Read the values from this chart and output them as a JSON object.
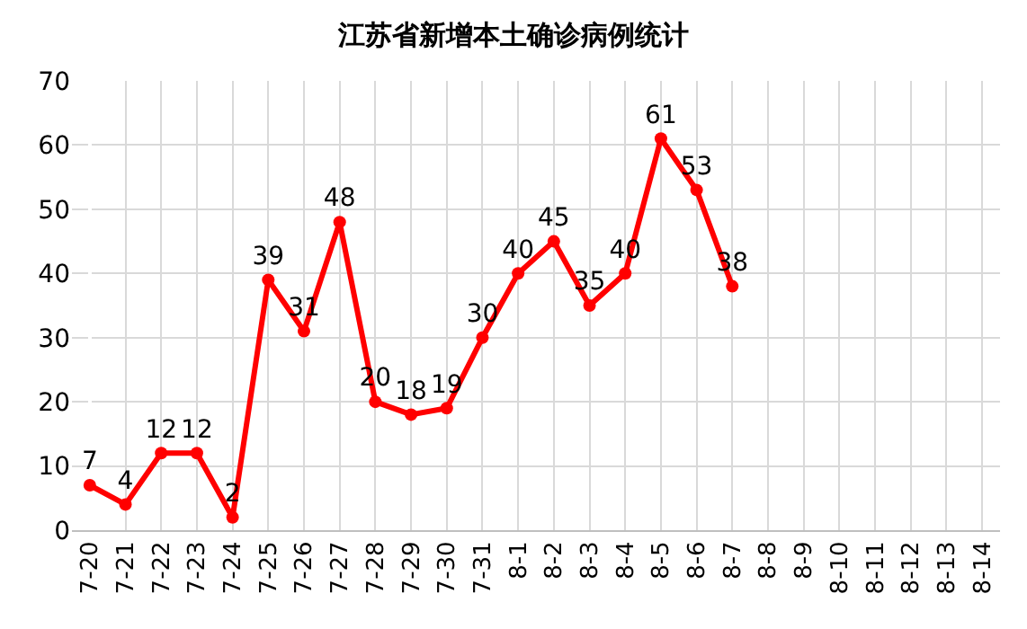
{
  "chart_data": {
    "type": "line",
    "title": "江苏省新增本土确诊病例统计",
    "categories": [
      "7-20",
      "7-21",
      "7-22",
      "7-23",
      "7-24",
      "7-25",
      "7-26",
      "7-27",
      "7-28",
      "7-29",
      "7-30",
      "7-31",
      "8-1",
      "8-2",
      "8-3",
      "8-4",
      "8-5",
      "8-6",
      "8-7",
      "8-8",
      "8-9",
      "8-10",
      "8-11",
      "8-12",
      "8-13",
      "8-14"
    ],
    "series": [
      {
        "color": "#ff0000",
        "values": [
          7,
          4,
          12,
          12,
          2,
          39,
          31,
          48,
          20,
          18,
          19,
          30,
          40,
          45,
          35,
          40,
          61,
          53,
          38,
          null,
          null,
          null,
          null,
          null,
          null,
          null
        ]
      }
    ],
    "ylim": [
      0,
      70
    ],
    "yticks": [
      0,
      10,
      20,
      30,
      40,
      50,
      60,
      70
    ],
    "grid": true,
    "marker": "circle",
    "line_style": "solid",
    "data_labels": true
  }
}
